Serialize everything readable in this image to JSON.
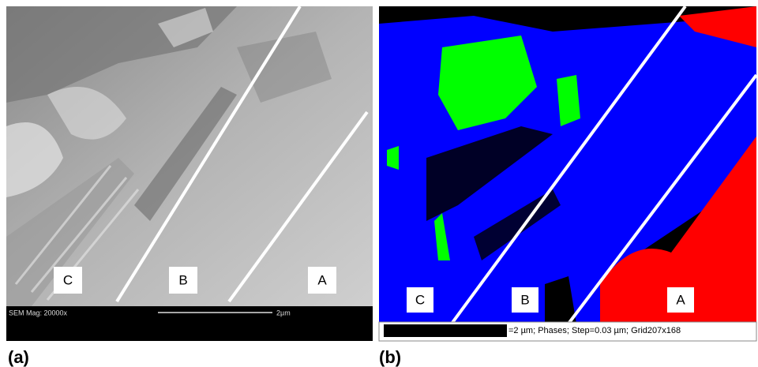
{
  "panels": [
    {
      "label": "(a)",
      "regions": [
        "C",
        "B",
        "A"
      ],
      "info": "SEM Mag: 20000x",
      "scale": "2µm"
    },
    {
      "label": "(b)",
      "regions": [
        "C",
        "B",
        "A"
      ],
      "info": "=2 µm; Phases; Step=0.03 µm; Grid207x168"
    }
  ]
}
